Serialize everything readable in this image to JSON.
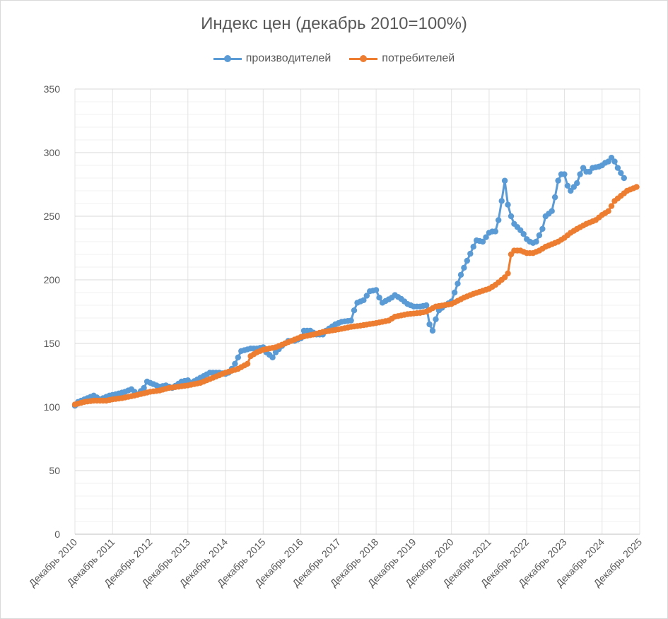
{
  "chart_data": {
    "type": "line",
    "title": "Индекс цен (декабрь 2010=100%)",
    "xlabel": "",
    "ylabel": "",
    "ylim": [
      0,
      350
    ],
    "yticks": [
      0,
      50,
      100,
      150,
      200,
      250,
      300,
      350
    ],
    "xlim": [
      2010.917,
      2025.917
    ],
    "categories": [
      "Декабрь 2010",
      "Декабрь 2011",
      "Декабрь 2012",
      "Декабрь 2013",
      "Декабрь 2014",
      "Декабрь 2015",
      "Декабрь 2016",
      "Декабрь 2017",
      "Декабрь 2018",
      "Декабрь 2019",
      "Декабрь 2020",
      "Декабрь 2021",
      "Декабрь 2022",
      "Декабрь 2023",
      "Декабрь 2024",
      "Декабрь 2025"
    ],
    "grid": true,
    "legend_position": "top",
    "series": [
      {
        "name": "производителей",
        "color": "#5b9bd5",
        "keypoints": [
          [
            2010.917,
            101
          ],
          [
            2011.0,
            104
          ],
          [
            2011.25,
            107
          ],
          [
            2011.417,
            109
          ],
          [
            2011.583,
            106
          ],
          [
            2011.833,
            109
          ],
          [
            2012.0,
            110
          ],
          [
            2012.25,
            112
          ],
          [
            2012.417,
            114
          ],
          [
            2012.583,
            110
          ],
          [
            2012.75,
            115
          ],
          [
            2012.833,
            120
          ],
          [
            2013.0,
            118
          ],
          [
            2013.167,
            116
          ],
          [
            2013.333,
            117
          ],
          [
            2013.5,
            115
          ],
          [
            2013.75,
            120
          ],
          [
            2013.917,
            121
          ],
          [
            2014.0,
            119
          ],
          [
            2014.25,
            123
          ],
          [
            2014.5,
            127
          ],
          [
            2014.75,
            127
          ],
          [
            2014.917,
            126
          ],
          [
            2015.0,
            127
          ],
          [
            2015.083,
            130
          ],
          [
            2015.167,
            134
          ],
          [
            2015.333,
            144
          ],
          [
            2015.583,
            146
          ],
          [
            2015.75,
            146
          ],
          [
            2015.917,
            147
          ],
          [
            2016.0,
            143
          ],
          [
            2016.167,
            139
          ],
          [
            2016.25,
            143
          ],
          [
            2016.417,
            148
          ],
          [
            2016.583,
            152
          ],
          [
            2016.75,
            152
          ],
          [
            2016.917,
            154
          ],
          [
            2017.0,
            160
          ],
          [
            2017.167,
            160
          ],
          [
            2017.333,
            157
          ],
          [
            2017.5,
            157
          ],
          [
            2017.583,
            160
          ],
          [
            2017.833,
            165
          ],
          [
            2018.0,
            167
          ],
          [
            2018.25,
            168
          ],
          [
            2018.333,
            176
          ],
          [
            2018.417,
            182
          ],
          [
            2018.583,
            184
          ],
          [
            2018.75,
            191
          ],
          [
            2018.917,
            192
          ],
          [
            2019.0,
            186
          ],
          [
            2019.083,
            182
          ],
          [
            2019.333,
            186
          ],
          [
            2019.417,
            188
          ],
          [
            2019.583,
            185
          ],
          [
            2019.75,
            181
          ],
          [
            2019.917,
            179
          ],
          [
            2020.083,
            179
          ],
          [
            2020.25,
            180
          ],
          [
            2020.333,
            165
          ],
          [
            2020.417,
            160
          ],
          [
            2020.5,
            169
          ],
          [
            2020.583,
            176
          ],
          [
            2020.75,
            180
          ],
          [
            2020.917,
            183
          ],
          [
            2021.0,
            190
          ],
          [
            2021.167,
            204
          ],
          [
            2021.333,
            215
          ],
          [
            2021.5,
            226
          ],
          [
            2021.583,
            231
          ],
          [
            2021.75,
            230
          ],
          [
            2021.917,
            237
          ],
          [
            2022.0,
            238
          ],
          [
            2022.083,
            238
          ],
          [
            2022.167,
            247
          ],
          [
            2022.25,
            262
          ],
          [
            2022.333,
            278
          ],
          [
            2022.417,
            259
          ],
          [
            2022.5,
            250
          ],
          [
            2022.583,
            244
          ],
          [
            2022.75,
            239
          ],
          [
            2022.833,
            236
          ],
          [
            2022.917,
            232
          ],
          [
            2023.0,
            230
          ],
          [
            2023.083,
            229
          ],
          [
            2023.167,
            230
          ],
          [
            2023.333,
            240
          ],
          [
            2023.417,
            250
          ],
          [
            2023.583,
            254
          ],
          [
            2023.667,
            265
          ],
          [
            2023.75,
            278
          ],
          [
            2023.833,
            283
          ],
          [
            2023.917,
            283
          ],
          [
            2024.0,
            274
          ],
          [
            2024.083,
            270
          ],
          [
            2024.25,
            276
          ],
          [
            2024.333,
            283
          ],
          [
            2024.417,
            288
          ],
          [
            2024.5,
            285
          ],
          [
            2024.583,
            285
          ],
          [
            2024.667,
            288
          ],
          [
            2024.833,
            289
          ],
          [
            2024.917,
            290
          ],
          [
            2025.0,
            292
          ],
          [
            2025.083,
            293
          ],
          [
            2025.167,
            296
          ],
          [
            2025.25,
            293
          ],
          [
            2025.333,
            288
          ],
          [
            2025.417,
            284
          ],
          [
            2025.5,
            280
          ]
        ]
      },
      {
        "name": "потребителей",
        "color": "#ed7d31",
        "keypoints": [
          [
            2010.917,
            102
          ],
          [
            2011.167,
            104
          ],
          [
            2011.417,
            105
          ],
          [
            2011.583,
            105
          ],
          [
            2011.75,
            105
          ],
          [
            2011.917,
            106
          ],
          [
            2012.167,
            107
          ],
          [
            2012.5,
            109
          ],
          [
            2012.917,
            112
          ],
          [
            2013.167,
            113
          ],
          [
            2013.417,
            115
          ],
          [
            2013.917,
            117
          ],
          [
            2014.25,
            119
          ],
          [
            2014.5,
            122
          ],
          [
            2014.917,
            127
          ],
          [
            2015.25,
            130
          ],
          [
            2015.5,
            134
          ],
          [
            2015.583,
            140
          ],
          [
            2015.75,
            143
          ],
          [
            2015.917,
            145
          ],
          [
            2016.25,
            147
          ],
          [
            2016.5,
            150
          ],
          [
            2016.75,
            153
          ],
          [
            2016.917,
            155
          ],
          [
            2017.25,
            157
          ],
          [
            2017.5,
            159
          ],
          [
            2017.917,
            161
          ],
          [
            2018.25,
            163
          ],
          [
            2018.5,
            164
          ],
          [
            2018.917,
            166
          ],
          [
            2019.25,
            168
          ],
          [
            2019.417,
            171
          ],
          [
            2019.75,
            173
          ],
          [
            2020.083,
            174
          ],
          [
            2020.25,
            175
          ],
          [
            2020.5,
            179
          ],
          [
            2020.917,
            181
          ],
          [
            2021.25,
            186
          ],
          [
            2021.5,
            189
          ],
          [
            2021.917,
            193
          ],
          [
            2022.083,
            196
          ],
          [
            2022.333,
            202
          ],
          [
            2022.417,
            205
          ],
          [
            2022.5,
            220
          ],
          [
            2022.583,
            223
          ],
          [
            2022.75,
            223
          ],
          [
            2022.917,
            221
          ],
          [
            2023.083,
            221
          ],
          [
            2023.25,
            223
          ],
          [
            2023.417,
            226
          ],
          [
            2023.583,
            228
          ],
          [
            2023.75,
            230
          ],
          [
            2023.917,
            233
          ],
          [
            2024.083,
            237
          ],
          [
            2024.25,
            240
          ],
          [
            2024.5,
            244
          ],
          [
            2024.75,
            247
          ],
          [
            2024.917,
            251
          ],
          [
            2025.083,
            254
          ],
          [
            2025.25,
            262
          ],
          [
            2025.417,
            266
          ],
          [
            2025.583,
            270
          ],
          [
            2025.75,
            272
          ],
          [
            2025.833,
            273
          ]
        ]
      }
    ]
  }
}
